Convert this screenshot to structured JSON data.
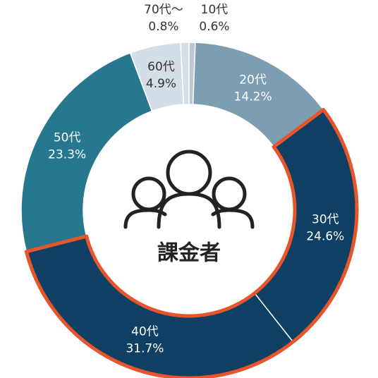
{
  "chart_data": {
    "type": "donut",
    "center_label": "課金者",
    "categories": [
      "10代",
      "20代",
      "30代",
      "40代",
      "50代",
      "60代",
      "70代〜"
    ],
    "values": [
      0.6,
      14.2,
      24.6,
      31.7,
      23.3,
      4.9,
      0.8
    ],
    "value_labels": [
      "0.6%",
      "14.2%",
      "24.6%",
      "31.7%",
      "23.3%",
      "4.9%",
      "0.8%"
    ],
    "colors": [
      "#b9c9d5",
      "#7d9db2",
      "#0f3f63",
      "#0f3f63",
      "#27788f",
      "#d3dee6",
      "#d3dee6"
    ],
    "highlight": [
      2,
      3
    ],
    "highlight_color": "#e8552d"
  }
}
